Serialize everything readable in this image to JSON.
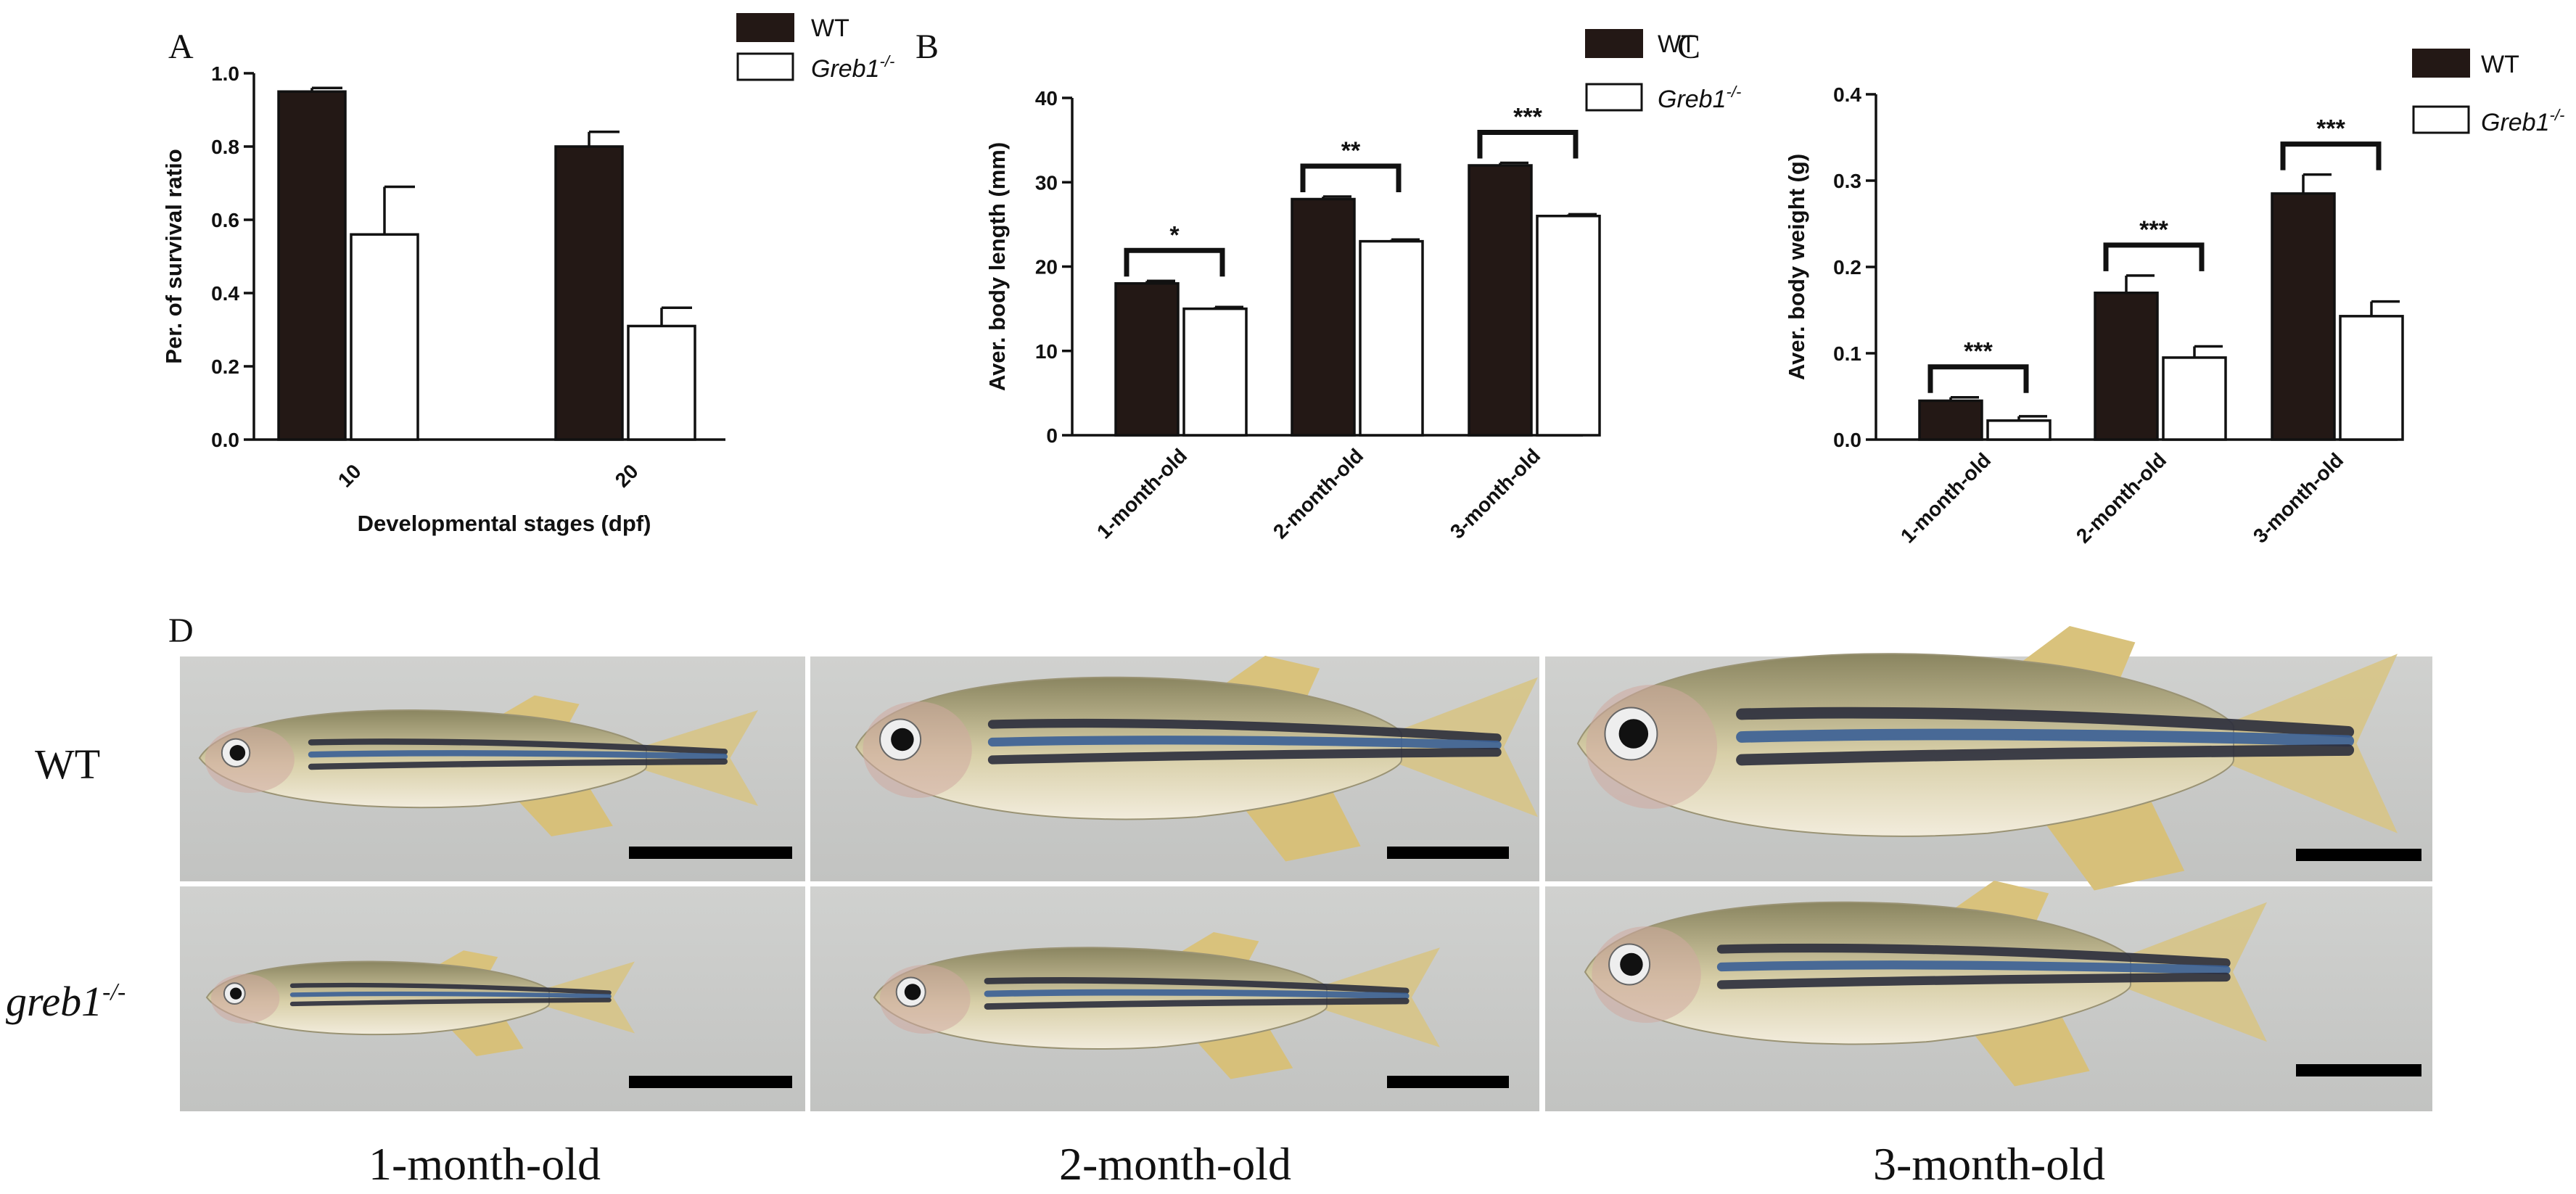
{
  "chart_data": [
    {
      "panel": "A",
      "type": "bar",
      "categories": [
        "10",
        "20"
      ],
      "series": [
        {
          "name": "WT",
          "values": [
            0.95,
            0.8
          ],
          "errors": [
            0.01,
            0.04
          ],
          "color": "#231815"
        },
        {
          "name": "Greb1-/-",
          "values": [
            0.56,
            0.31
          ],
          "errors": [
            0.13,
            0.05
          ],
          "color": "#ffffff"
        }
      ],
      "xlabel": "Developmental stages (dpf)",
      "ylabel": "Per. of survival ratio",
      "ylim": [
        0,
        1.0
      ],
      "yticks": [
        "0.0",
        "0.2",
        "0.4",
        "0.6",
        "0.8",
        "1.0"
      ],
      "significance": [],
      "legend": "top-right",
      "grid": false
    },
    {
      "panel": "B",
      "type": "bar",
      "categories": [
        "1-month-old",
        "2-month-old",
        "3-month-old"
      ],
      "series": [
        {
          "name": "WT",
          "values": [
            18,
            28,
            32
          ],
          "errors": [
            0.3,
            0.3,
            0.3
          ],
          "color": "#231815"
        },
        {
          "name": "Greb1-/-",
          "values": [
            15,
            23,
            26
          ],
          "errors": [
            0.2,
            0.2,
            0.2
          ],
          "color": "#ffffff"
        }
      ],
      "xlabel": "",
      "ylabel": "Aver. body length (mm)",
      "ylim": [
        0,
        40
      ],
      "yticks": [
        "0",
        "10",
        "20",
        "30",
        "40"
      ],
      "significance": [
        "*",
        "**",
        "***"
      ],
      "legend": "top-right",
      "grid": false
    },
    {
      "panel": "C",
      "type": "bar",
      "categories": [
        "1-month-old",
        "2-month-old",
        "3-month-old"
      ],
      "series": [
        {
          "name": "WT",
          "values": [
            0.045,
            0.17,
            0.285
          ],
          "errors": [
            0.004,
            0.02,
            0.022
          ],
          "color": "#231815"
        },
        {
          "name": "Greb1-/-",
          "values": [
            0.022,
            0.095,
            0.143
          ],
          "errors": [
            0.005,
            0.013,
            0.017
          ],
          "color": "#ffffff"
        }
      ],
      "xlabel": "",
      "ylabel": "Aver. body weight (g)",
      "ylim": [
        0,
        0.4
      ],
      "yticks": [
        "0.0",
        "0.1",
        "0.2",
        "0.3",
        "0.4"
      ],
      "significance": [
        "***",
        "***",
        "***"
      ],
      "legend": "top-right",
      "grid": false
    }
  ],
  "legend": {
    "wt": "WT",
    "mut_base": "Greb1",
    "mut_sup": "-/-"
  },
  "photo_panel": {
    "letter": "D",
    "rows": {
      "wt": "WT",
      "mut_base": "greb1",
      "mut_sup": "-/-"
    },
    "columns": [
      "1-month-old",
      "2-month-old",
      "3-month-old"
    ]
  },
  "colors": {
    "wt_bar": "#231815",
    "mut_bar": "#ffffff",
    "axis": "#111111",
    "photo_bg": "#c9cac8"
  }
}
